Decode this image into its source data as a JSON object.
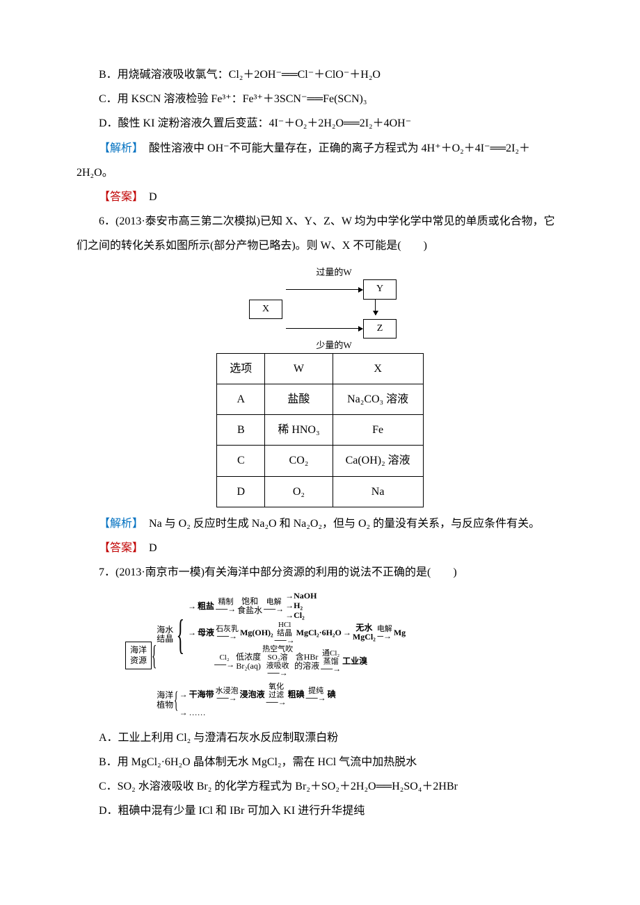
{
  "q5": {
    "optB": "B．用烧碱溶液吸收氯气：Cl₂＋2OH⁻══Cl⁻＋ClO⁻＋H₂O",
    "optC": "C．用 KSCN 溶液检验 Fe³⁺：Fe³⁺＋3SCN⁻══Fe(SCN)₃",
    "optD": "D．酸性 KI 淀粉溶液久置后变蓝：4I⁻＋O₂＋2H₂O══2I₂＋4OH⁻",
    "analysis_label": "【解析】",
    "analysis": "　酸性溶液中 OH⁻不可能大量存在，正确的离子方程式为 4H⁺＋O₂＋4I⁻══2I₂＋2H₂O。",
    "answer_label": "【答案】",
    "answer": "　D"
  },
  "q6": {
    "stem": "6．(2013·泰安市高三第二次模拟)已知 X、Y、Z、W 均为中学化学中常见的单质或化合物，它们之间的转化关系如图所示(部分产物已略去)。则 W、X 不可能是(　　)",
    "diagram": {
      "top_label": "过量的W",
      "bottom_label": "少量的W",
      "X": "X",
      "Y": "Y",
      "Z": "Z"
    },
    "table": {
      "head": [
        "选项",
        "W",
        "X"
      ],
      "rows": [
        [
          "A",
          "盐酸",
          "Na₂CO₃ 溶液"
        ],
        [
          "B",
          "稀 HNO₃",
          "Fe"
        ],
        [
          "C",
          "CO₂",
          "Ca(OH)₂ 溶液"
        ],
        [
          "D",
          "O₂",
          "Na"
        ]
      ]
    },
    "analysis_label": "【解析】",
    "analysis": "　Na 与 O₂ 反应时生成 Na₂O 和 Na₂O₂，但与 O₂ 的量没有关系，与反应条件有关。",
    "answer_label": "【答案】",
    "answer": "　D"
  },
  "q7": {
    "stem": "7．(2013·南京市一模)有关海洋中部分资源的利用的说法不正确的是(　　)",
    "flow": {
      "root": "海洋\\n资源",
      "branch1": "海水\\n结晶",
      "branch2": "海洋\\n植物",
      "b1_a": "粗盐",
      "b1_a_step": "精制",
      "b1_a_next": "饱和\\n食盐水",
      "b1_a_step2": "电解",
      "b1_a_prod": [
        "NaOH",
        "H₂",
        "Cl₂"
      ],
      "b1_b": "母液",
      "b1_b_step1": "石灰乳",
      "b1_b_mid": "Mg(OH)₂",
      "b1_b_step2": "HCl\\n结晶",
      "b1_b_mid2": "MgCl₂·6H₂O",
      "b1_b_prod1": "无水\\nMgCl₂",
      "b1_b_step3": "电解",
      "b1_b_prod2": "Mg",
      "b1_c_step": "Cl₂",
      "b1_c_mid": "低浓度\\nBr₂(aq)",
      "b1_c_step2": "热空气吹\\nSO₂溶\\n液吸收",
      "b1_c_mid2": "含HBr\\n的溶液",
      "b1_c_step3": "通Cl₂\\n蒸馏",
      "b1_c_prod": "工业溴",
      "b2_a": "干海带",
      "b2_a_step": "水浸泡",
      "b2_a_mid": "浸泡液",
      "b2_a_step2": "氧化\\n过滤",
      "b2_a_mid2": "粗碘",
      "b2_a_step3": "提纯",
      "b2_a_prod": "碘",
      "b2_dots": "……"
    },
    "optA": "A．工业上利用 Cl₂ 与澄清石灰水反应制取漂白粉",
    "optB": "B．用 MgCl₂·6H₂O 晶体制无水 MgCl₂，需在 HCl 气流中加热脱水",
    "optC": "C．SO₂ 水溶液吸收 Br₂ 的化学方程式为 Br₂＋SO₂＋2H₂O══H₂SO₄＋2HBr",
    "optD": "D．粗碘中混有少量 ICl 和 IBr 可加入 KI 进行升华提纯"
  },
  "colors": {
    "analysis": "#0070c0",
    "answer": "#c00000",
    "text": "#000000",
    "bg": "#ffffff"
  }
}
